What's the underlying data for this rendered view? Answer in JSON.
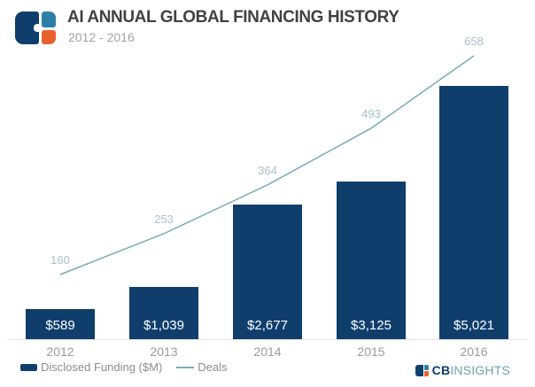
{
  "header": {
    "title": "AI ANNUAL GLOBAL FINANCING HISTORY",
    "subtitle": "2012 - 2016"
  },
  "footer": {
    "brand_cb": "CB",
    "brand_insights": "INSIGHTS"
  },
  "colors": {
    "navy": "#0f3e6d",
    "logo_light_blue": "#2d7fa8",
    "logo_orange": "#e8612c",
    "deals_line": "#79acb6",
    "deals_label": "#a9c0c8",
    "title_text": "#414141",
    "muted_text": "#a3a3a3",
    "x_label": "#9b9b9b",
    "legend_text": "#8d8d8d",
    "axis_line": "#e3e3e3",
    "footer_insights_text": "#6f9fae"
  },
  "chart_data": {
    "type": "bar",
    "categories": [
      "2012",
      "2013",
      "2014",
      "2015",
      "2016"
    ],
    "series": [
      {
        "name": "Disclosed Funding ($M)",
        "type": "bar",
        "values": [
          589,
          1039,
          2677,
          3125,
          5021
        ],
        "labels": [
          "$589",
          "$1,039",
          "$2,677",
          "$3,125",
          "$5,021"
        ],
        "color": "#0f3e6d"
      },
      {
        "name": "Deals",
        "type": "line",
        "values": [
          160,
          253,
          364,
          493,
          658
        ],
        "color": "#79acb6"
      }
    ],
    "title": "AI Annual Global Financing History",
    "xlabel": "",
    "ylabel": "",
    "ylim_funding": [
      0,
      5021
    ],
    "ylim_deals": [
      160,
      658
    ],
    "grid": false,
    "legend_position": "bottom-left",
    "value_labels_inside_bars": true
  }
}
